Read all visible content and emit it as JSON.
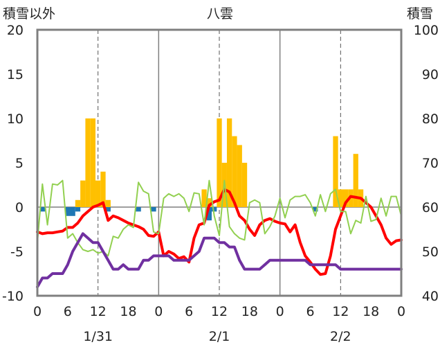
{
  "chart_data": {
    "type": "combo",
    "title": "八雲",
    "left_axis_label": "積雪以外",
    "right_axis_label": "積雪",
    "left_ylim": [
      -10,
      20
    ],
    "right_ylim": [
      40,
      100
    ],
    "left_ticks": [
      20,
      15,
      10,
      5,
      0,
      -5,
      -10
    ],
    "right_ticks": [
      100,
      90,
      80,
      70,
      60,
      50,
      40
    ],
    "x_ticks": [
      "0",
      "6",
      "12",
      "18",
      "0",
      "6",
      "12",
      "18",
      "0",
      "6",
      "12",
      "18",
      "0"
    ],
    "days": [
      "1/31",
      "2/1",
      "2/2"
    ],
    "grid": "vertical dashed at hour 12, solid at day boundaries",
    "series": [
      {
        "kind": "bar",
        "color": "#FFC000",
        "values": [
          0,
          0,
          0,
          0,
          0,
          0,
          0,
          0,
          0.8,
          3,
          10,
          10,
          3,
          4,
          0.8,
          0,
          0,
          0,
          0,
          0,
          0,
          0,
          0,
          0,
          0,
          0,
          0,
          0,
          0,
          0,
          0,
          0,
          0,
          2,
          1,
          0,
          10,
          5,
          10,
          8,
          7,
          5,
          0,
          0,
          0,
          0,
          0,
          0,
          0,
          0,
          0,
          0,
          0,
          0,
          0,
          0,
          0,
          0,
          0,
          8,
          2,
          2,
          2,
          6,
          2,
          0,
          0,
          0,
          0,
          0,
          0,
          0,
          0
        ]
      },
      {
        "kind": "bar",
        "color": "#1F77B4",
        "values": [
          0,
          -0.5,
          0,
          0,
          0,
          0,
          -1,
          -1,
          -0.5,
          0,
          0,
          0,
          0,
          0,
          -0.5,
          0,
          0,
          0,
          0,
          0,
          -0.5,
          0,
          0,
          -0.5,
          0,
          0,
          0,
          0,
          0,
          0,
          0,
          0,
          0,
          0,
          -1.5,
          -0.5,
          0,
          0,
          0,
          0,
          0,
          0,
          0,
          0,
          0,
          0,
          0,
          0,
          0,
          0,
          0,
          0,
          0,
          0,
          0,
          -0.5,
          0,
          0,
          0,
          0,
          0,
          0,
          0,
          0,
          0,
          0,
          0,
          0,
          0,
          0,
          0,
          0,
          0
        ]
      },
      {
        "kind": "line",
        "color": "#FF0000",
        "width": 4,
        "values": [
          -2.8,
          -3,
          -2.9,
          -2.9,
          -2.8,
          -2.7,
          -2.3,
          -2.3,
          -1.8,
          -1,
          -0.5,
          0,
          0.2,
          0.5,
          -1.5,
          -1,
          -1.2,
          -1.5,
          -1.8,
          -2,
          -2.2,
          -2.5,
          -3.2,
          -3.3,
          -2.8,
          -5.5,
          -5,
          -5.3,
          -5.8,
          -5.6,
          -6.2,
          -3.5,
          -2,
          -1.8,
          0.2,
          0.6,
          0.8,
          2,
          1.7,
          0.5,
          -1,
          -1.5,
          -2.5,
          -3.2,
          -2,
          -1.5,
          -1.3,
          -1.6,
          -1.8,
          -1.9,
          -2.8,
          -2,
          -4,
          -5.5,
          -6.2,
          -7,
          -7.6,
          -7.5,
          -5.5,
          -2.5,
          -1,
          0.5,
          1.2,
          1.1,
          1,
          0.5,
          0,
          -1,
          -2,
          -3.5,
          -4.2,
          -3.8,
          -3.7
        ]
      },
      {
        "kind": "line",
        "color": "#92D050",
        "width": 2,
        "values": [
          -4,
          2.6,
          -2,
          2.6,
          2.5,
          3,
          -3.5,
          -3,
          -4,
          -4.8,
          -5,
          -4.8,
          -5.2,
          -5,
          -5.5,
          -3.3,
          -3.5,
          -2.5,
          -2,
          -2.3,
          2.8,
          1.8,
          1.5,
          -2.8,
          -3,
          1,
          1.5,
          1.2,
          1.5,
          1,
          -0.5,
          1.6,
          1.5,
          -2,
          3,
          -1,
          -3.2,
          3,
          -2.2,
          -3,
          -3.5,
          -3.7,
          0.5,
          0.8,
          0.5,
          -3,
          -2.2,
          -1,
          1,
          -1.2,
          0.8,
          1.2,
          1.2,
          1.4,
          0.5,
          -1,
          1.4,
          -0.5,
          1.5,
          2,
          -0.5,
          -0.5,
          -3,
          -1.5,
          -1.8,
          1.2,
          -1.6,
          -1.4,
          1,
          -1,
          1.2,
          1.2,
          -1
        ]
      },
      {
        "kind": "line",
        "color": "#7030A0",
        "width": 4,
        "axis": "right",
        "values": [
          42,
          44,
          44,
          45,
          45,
          45,
          47,
          50,
          52,
          54,
          53,
          52,
          52,
          50,
          48,
          46,
          46,
          47,
          46,
          46,
          46,
          48,
          48,
          49,
          49,
          49,
          49,
          48,
          48,
          48,
          48,
          49,
          50,
          53,
          53,
          53,
          52,
          52,
          51,
          51,
          48,
          46,
          46,
          46,
          46,
          47,
          48,
          48,
          48,
          48,
          48,
          48,
          48,
          48,
          47,
          47,
          47,
          47,
          47,
          47,
          46,
          46,
          46,
          46,
          46,
          46,
          46,
          46,
          46,
          46,
          46,
          46,
          46
        ]
      }
    ]
  }
}
